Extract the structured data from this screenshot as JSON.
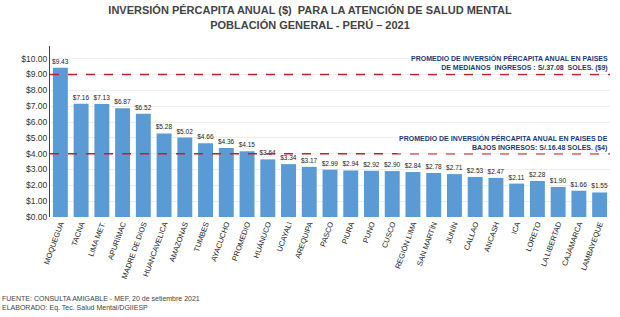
{
  "chart_data": {
    "type": "bar",
    "title": "INVERSIÓN PÉRCAPITA ANUAL ($)  PARA LA ATENCIÓN DE SALUD MENTAL",
    "subtitle": "POBLACIÓN GENERAL - PERÚ – 2021",
    "categories": [
      "MOQUEGUA",
      "TACNA",
      "LIMA MET.",
      "APURÍMAC",
      "MADRE DE DIOS",
      "HUANCAVELICA",
      "AMAZONAS",
      "TUMBES",
      "AYACUCHO",
      "PROMEDIO",
      "HUÁNUCO",
      "UCAYALI",
      "AREQUIPA",
      "PASCO",
      "PIURA",
      "PUNO",
      "CUSCO",
      "REGIÓN LIMA",
      "SAN MARTÍN",
      "JUNÍN",
      "CALLAO",
      "ANCASH",
      "ICA",
      "LORETO",
      "LA LIBERTAD",
      "CAJAMARCA",
      "LAMBAYEQUE"
    ],
    "values": [
      9.43,
      7.16,
      7.13,
      6.87,
      6.52,
      5.28,
      5.02,
      4.66,
      4.36,
      4.15,
      3.64,
      3.34,
      3.17,
      2.99,
      2.94,
      2.92,
      2.9,
      2.84,
      2.78,
      2.71,
      2.53,
      2.47,
      2.11,
      2.28,
      1.9,
      1.66,
      1.55
    ],
    "value_labels": [
      "$9.43",
      "$7.16",
      "$7.13",
      "$6.87",
      "$6.52",
      "$5.28",
      "$5.02",
      "$4.66",
      "$4.36",
      "$4.15",
      "$3.64",
      "$3.34",
      "$3.17",
      "$2.99",
      "$2.94",
      "$2.92",
      "$2.90",
      "$2.84",
      "$2.78",
      "$2.71",
      "$2.53",
      "$2.47",
      "$2.11",
      "$2.28",
      "$1.90",
      "$1.66",
      "$1.55"
    ],
    "data_labels": true,
    "color": "#5b9bd5",
    "ylim": [
      0,
      10.8
    ],
    "yticks": [
      {
        "value": 0,
        "label": "$0.00"
      },
      {
        "value": 1,
        "label": "$1.00"
      },
      {
        "value": 2,
        "label": "$2.00"
      },
      {
        "value": 3,
        "label": "$3.00"
      },
      {
        "value": 4,
        "label": "$4.00"
      },
      {
        "value": 5,
        "label": "$5.00"
      },
      {
        "value": 6,
        "label": "$6.00"
      },
      {
        "value": 7,
        "label": "$7.00"
      },
      {
        "value": 8,
        "label": "$8.00"
      },
      {
        "value": 9,
        "label": "$9.00"
      },
      {
        "value": 10,
        "label": "$10.00"
      }
    ],
    "grid": true,
    "reference_lines": [
      {
        "value": 9.0,
        "color": "#c0202a",
        "label": [
          "PROMEDIO DE INVERSIÓN PÉRCAPITA ANUAL EN PAISES",
          "DE MEDIANOS  INGRESOS : S/.37.08  SOLES. ($9)"
        ]
      },
      {
        "value": 4.0,
        "color": "#c0202a",
        "label": [
          "PROMEDIO DE INVERSIÓN PÉRCAPITA ANUAL EN PAISES DE",
          "BAJOS INGRESOS: S/.16.48 SOLES. ($4)"
        ]
      }
    ],
    "footer": [
      "FUENTE: CONSULTA AMIGABLE - MEF, 20 de setiembre 2021",
      "ELABORADO: Eq. Tec. Salud Mental/DGIIESP"
    ]
  }
}
